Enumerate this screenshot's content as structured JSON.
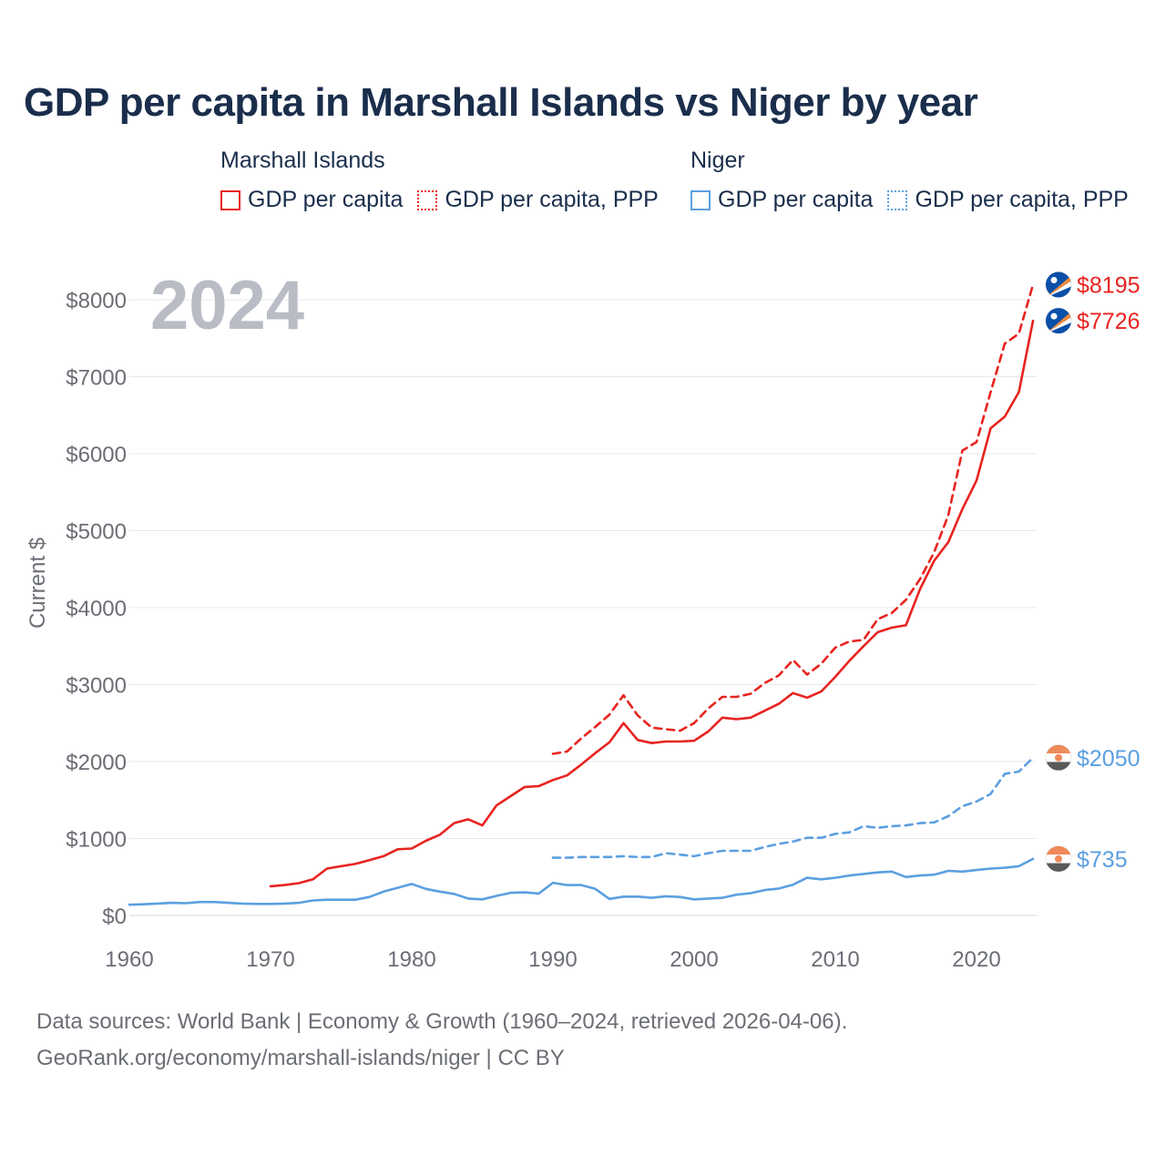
{
  "title": "GDP per capita in Marshall Islands vs Niger by year",
  "year_label": "2024",
  "legend": {
    "groups": [
      {
        "name": "Marshall Islands",
        "color": "#e8231f",
        "items": [
          {
            "label": "GDP per capita",
            "style": "solid"
          },
          {
            "label": "GDP per capita, PPP",
            "style": "dotted"
          }
        ]
      },
      {
        "name": "Niger",
        "color": "#5b9fe0",
        "items": [
          {
            "label": "GDP per capita",
            "style": "solid"
          },
          {
            "label": "GDP per capita, PPP",
            "style": "dotted"
          }
        ]
      }
    ]
  },
  "footer": {
    "line1": "Data sources: World Bank | Economy & Growth (1960–2024, retrieved 2026-04-06).",
    "line2": "GeoRank.org/economy/marshall-islands/niger | CC BY"
  },
  "chart_data": {
    "type": "line",
    "title": "GDP per capita in Marshall Islands vs Niger by year",
    "xlabel": "",
    "ylabel": "Current $",
    "xlim": [
      1960,
      2024
    ],
    "ylim": [
      0,
      8200
    ],
    "x_ticks": [
      1960,
      1970,
      1980,
      1990,
      2000,
      2010,
      2020
    ],
    "y_ticks": [
      0,
      1000,
      2000,
      3000,
      4000,
      5000,
      6000,
      7000,
      8000
    ],
    "y_tick_labels": [
      "$0",
      "$1000",
      "$2000",
      "$3000",
      "$4000",
      "$5000",
      "$6000",
      "$7000",
      "$8000"
    ],
    "grid": true,
    "series": [
      {
        "name": "Marshall Islands GDP per capita",
        "country": "Marshall Islands",
        "color": "#e8231f",
        "dash": "solid",
        "end_label": "$7726",
        "start_year": 1970,
        "values": [
          380,
          395,
          420,
          470,
          610,
          640,
          670,
          720,
          770,
          860,
          870,
          970,
          1050,
          1200,
          1250,
          1170,
          1430,
          1550,
          1670,
          1680,
          1760,
          1820,
          1960,
          2110,
          2250,
          2500,
          2280,
          2240,
          2260,
          2260,
          2270,
          2390,
          2570,
          2550,
          2570,
          2660,
          2750,
          2890,
          2830,
          2910,
          3100,
          3310,
          3500,
          3680,
          3740,
          3770,
          4240,
          4610,
          4850,
          5280,
          5650,
          6330,
          6480,
          6800,
          7726
        ]
      },
      {
        "name": "Marshall Islands GDP per capita, PPP",
        "country": "Marshall Islands",
        "color": "#e8231f",
        "dash": "dashed",
        "end_label": "$8195",
        "start_year": 1990,
        "values": [
          2100,
          2130,
          2300,
          2450,
          2610,
          2860,
          2600,
          2440,
          2420,
          2400,
          2500,
          2690,
          2840,
          2840,
          2880,
          3020,
          3120,
          3320,
          3130,
          3270,
          3480,
          3560,
          3580,
          3850,
          3930,
          4100,
          4370,
          4720,
          5200,
          6040,
          6150,
          6800,
          7430,
          7560,
          8195
        ]
      },
      {
        "name": "Niger GDP per capita",
        "country": "Niger",
        "color": "#5b9fe0",
        "dash": "solid",
        "end_label": "$735",
        "start_year": 1960,
        "values": [
          140,
          145,
          155,
          165,
          160,
          175,
          175,
          165,
          155,
          150,
          150,
          155,
          165,
          195,
          205,
          205,
          205,
          240,
          310,
          360,
          410,
          345,
          310,
          280,
          220,
          210,
          255,
          295,
          300,
          285,
          425,
          395,
          395,
          345,
          215,
          245,
          245,
          230,
          250,
          240,
          210,
          220,
          230,
          270,
          290,
          330,
          350,
          400,
          490,
          470,
          490,
          520,
          540,
          560,
          570,
          500,
          520,
          530,
          580,
          570,
          590,
          610,
          620,
          640,
          735
        ]
      },
      {
        "name": "Niger GDP per capita, PPP",
        "country": "Niger",
        "color": "#5b9fe0",
        "dash": "dashed",
        "end_label": "$2050",
        "start_year": 1990,
        "values": [
          750,
          750,
          760,
          760,
          760,
          770,
          760,
          760,
          810,
          790,
          770,
          810,
          840,
          840,
          840,
          890,
          930,
          960,
          1010,
          1010,
          1060,
          1080,
          1160,
          1140,
          1160,
          1170,
          1200,
          1210,
          1290,
          1420,
          1480,
          1580,
          1840,
          1870,
          2050
        ]
      }
    ]
  }
}
